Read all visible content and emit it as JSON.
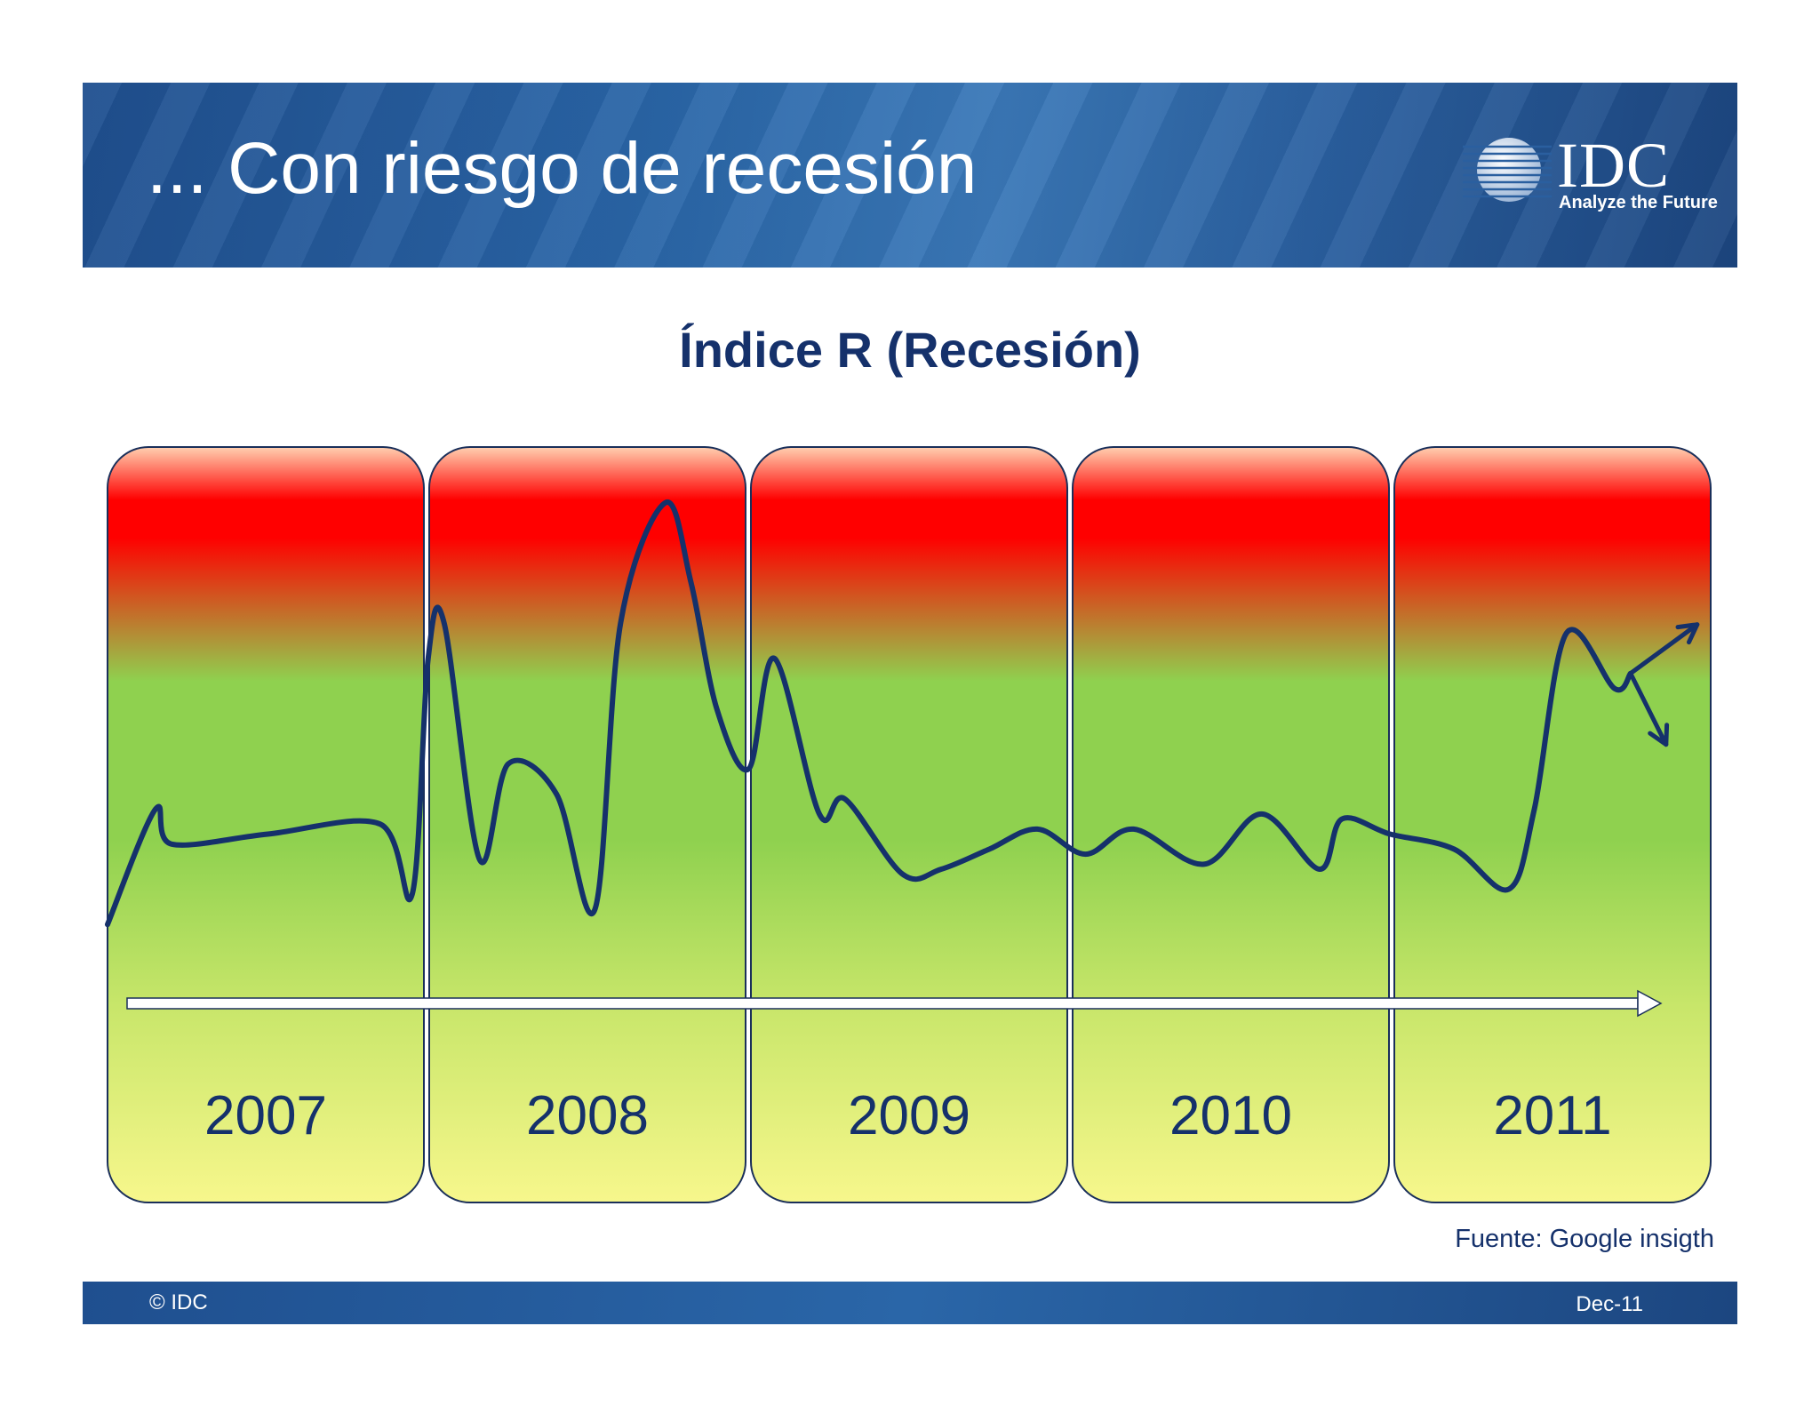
{
  "header": {
    "title": "... Con riesgo de recesión"
  },
  "logo": {
    "word": "IDC",
    "tagline": "Analyze the Future"
  },
  "colors": {
    "line": "#15316b",
    "red": "#ff0000",
    "green": "#8fd14f",
    "yellow": "#f7f78c",
    "band_border": "#1a2f5a"
  },
  "chart_data": {
    "type": "line",
    "title": "Índice R (Recesión)",
    "xlabel": "",
    "ylabel": "",
    "categories": [
      "2007",
      "2008",
      "2009",
      "2010",
      "2011"
    ],
    "ylim": [
      0,
      100
    ],
    "series": [
      {
        "name": "Índice R",
        "x": [
          2007.0,
          2007.15,
          2007.2,
          2007.5,
          2007.85,
          2007.95,
          2008.0,
          2008.05,
          2008.16,
          2008.25,
          2008.4,
          2008.52,
          2008.6,
          2008.74,
          2008.82,
          2008.9,
          2009.0,
          2009.08,
          2009.22,
          2009.3,
          2009.48,
          2009.6,
          2009.75,
          2009.9,
          2010.05,
          2010.2,
          2010.42,
          2010.6,
          2010.78,
          2010.85,
          2011.0,
          2011.2,
          2011.37,
          2011.45,
          2011.55,
          2011.7,
          2011.75
        ],
        "values": [
          12,
          35,
          28,
          30,
          32,
          18,
          65,
          72,
          25,
          44,
          38,
          15,
          72,
          96,
          80,
          55,
          43,
          65,
          34,
          37,
          22,
          23,
          27,
          31,
          26,
          31,
          24,
          34,
          23,
          33,
          30,
          27,
          19,
          35,
          70,
          59,
          62
        ]
      }
    ],
    "trend_arrows": [
      "up",
      "down"
    ],
    "timeline_arrow": true
  },
  "source": "Fuente: Google insigth",
  "footer": {
    "copyright": "© IDC",
    "date": "Dec-11"
  }
}
